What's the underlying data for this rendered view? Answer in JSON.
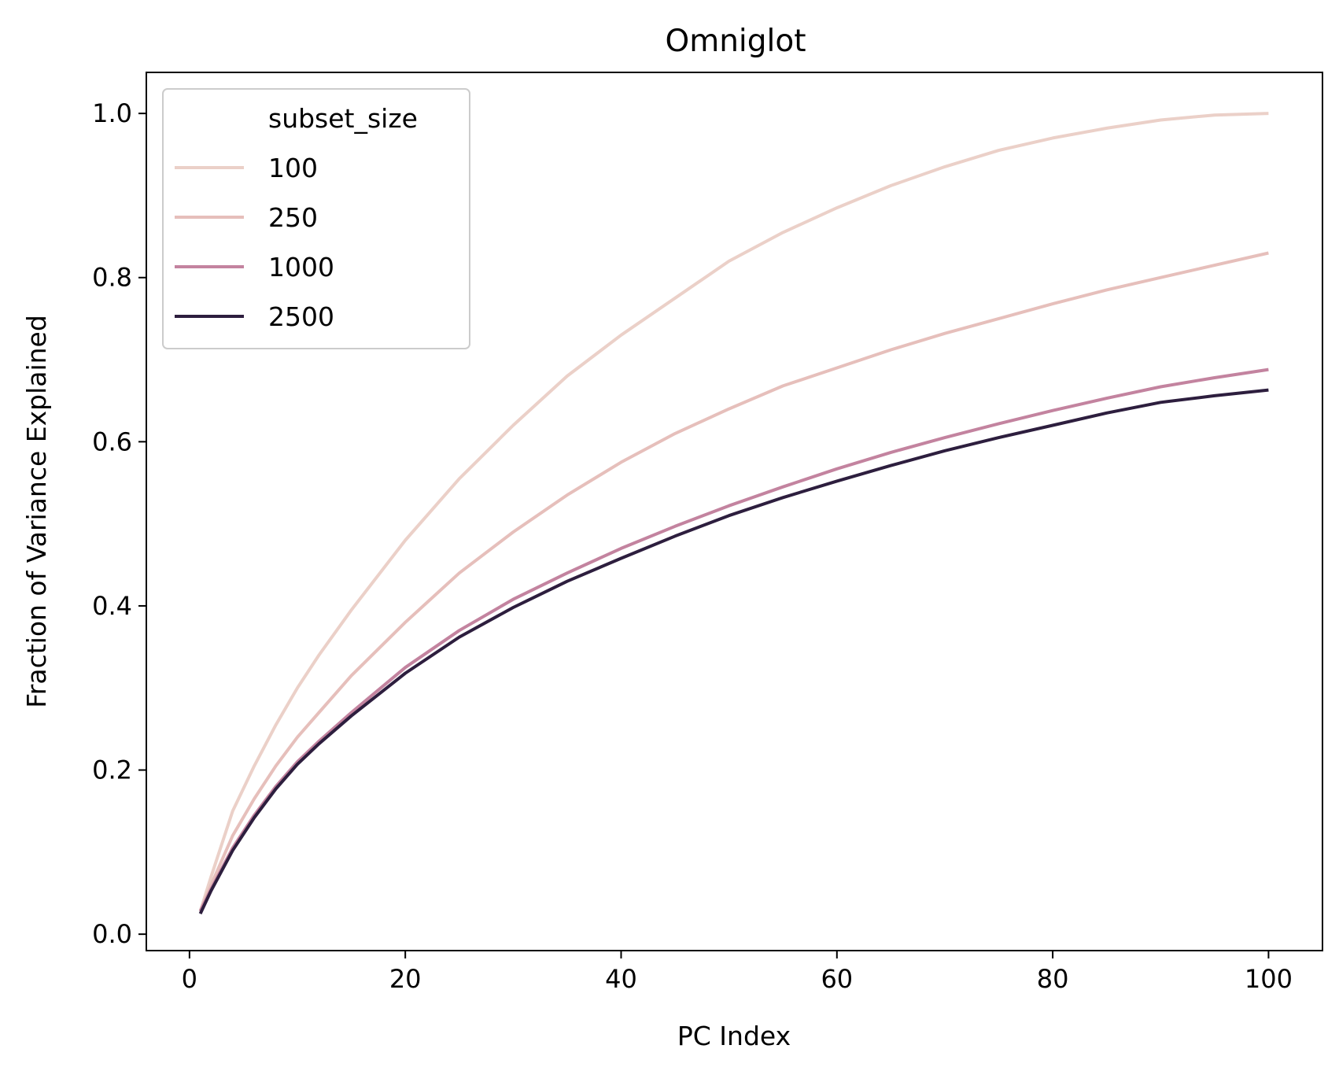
{
  "chart_data": {
    "type": "line",
    "title": "Omniglot",
    "xlabel": "PC Index",
    "ylabel": "Fraction of Variance Explained",
    "xlim": [
      -4,
      105
    ],
    "ylim": [
      -0.02,
      1.05
    ],
    "xticks": [
      0,
      20,
      40,
      60,
      80,
      100
    ],
    "xtick_labels": [
      "0",
      "20",
      "40",
      "60",
      "80",
      "100"
    ],
    "yticks": [
      0.0,
      0.2,
      0.4,
      0.6,
      0.8,
      1.0
    ],
    "ytick_labels": [
      "0.0",
      "0.2",
      "0.4",
      "0.6",
      "0.8",
      "1.0"
    ],
    "grid": false,
    "legend": {
      "title": "subset_size",
      "location": "upper-left"
    },
    "x": [
      1,
      2,
      4,
      6,
      8,
      10,
      12,
      15,
      20,
      25,
      30,
      35,
      40,
      45,
      50,
      55,
      60,
      65,
      70,
      75,
      80,
      85,
      90,
      95,
      100
    ],
    "series": [
      {
        "name": "100",
        "color": "#ebd0c8",
        "values": [
          0.028,
          0.07,
          0.15,
          0.205,
          0.255,
          0.3,
          0.34,
          0.395,
          0.48,
          0.555,
          0.62,
          0.68,
          0.73,
          0.775,
          0.82,
          0.855,
          0.885,
          0.912,
          0.935,
          0.955,
          0.97,
          0.982,
          0.992,
          0.998,
          1.0
        ]
      },
      {
        "name": "250",
        "color": "#e6bfbb",
        "values": [
          0.028,
          0.06,
          0.12,
          0.165,
          0.205,
          0.24,
          0.27,
          0.315,
          0.38,
          0.44,
          0.49,
          0.535,
          0.575,
          0.61,
          0.64,
          0.668,
          0.69,
          0.712,
          0.732,
          0.75,
          0.768,
          0.785,
          0.8,
          0.815,
          0.83
        ]
      },
      {
        "name": "1000",
        "color": "#c3839f",
        "values": [
          0.028,
          0.055,
          0.105,
          0.145,
          0.18,
          0.21,
          0.235,
          0.27,
          0.325,
          0.37,
          0.408,
          0.44,
          0.47,
          0.497,
          0.522,
          0.545,
          0.567,
          0.587,
          0.605,
          0.622,
          0.638,
          0.653,
          0.667,
          0.678,
          0.688
        ]
      },
      {
        "name": "2500",
        "color": "#2d1e3e",
        "values": [
          0.025,
          0.053,
          0.102,
          0.142,
          0.177,
          0.207,
          0.232,
          0.266,
          0.318,
          0.362,
          0.398,
          0.43,
          0.458,
          0.485,
          0.51,
          0.532,
          0.552,
          0.571,
          0.589,
          0.605,
          0.62,
          0.635,
          0.648,
          0.656,
          0.663
        ]
      }
    ]
  }
}
